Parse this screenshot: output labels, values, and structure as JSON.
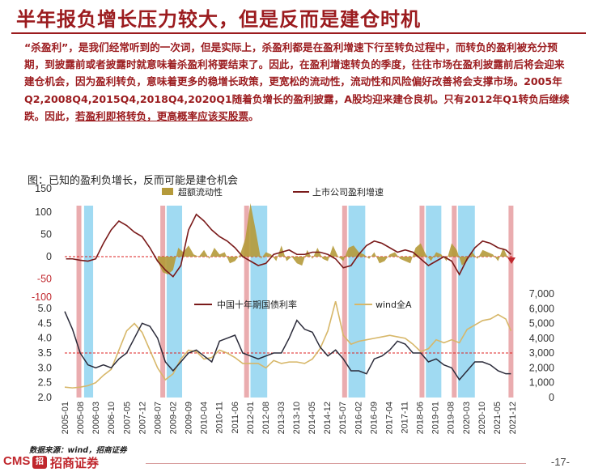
{
  "title": "半年报负增长压力较大，但是反而是建仓时机",
  "body": {
    "p1": "“杀盈利”，是我们经常听到的一次词，但是实际上，杀盈利都是在盈利增速下行至转负过程中，而转负的盈利被充分预期，到披露前或者披露时就意味着杀盈利将要结束了。因此，在盈利增速转负的季度，往往市场在盈利披露前后将会迎来建仓机会，因为盈利转负，意味着更多的稳增长政策，更宽松的流动性，流动性和风险偏好改善将会支撑市场。2005年Q2,2008Q4,2015Q4,2018Q4,2020Q1随着负增长的盈利披露，A股均迎来建仓良机。只有2012年Q1转负后继续跌。因此，",
    "p1_ul": "若盈利即将转负，更高概率应该买股票",
    "p1_end": "。"
  },
  "chart_title": "图：已知的盈利负增长，反而可能是建仓机会",
  "footer": {
    "source": "数据来源：wind，招商证券",
    "logo_text": "CMS",
    "logo_mark": "招",
    "logo_name": "招商证券",
    "page": "-17-"
  },
  "colors": {
    "brand_red": "#9b1b1e",
    "liquidity": "#b59a3a",
    "earnings": "#7a1a1a",
    "bond": "#2b2b3a",
    "wind": "#d7b769",
    "pink_band": "#e8a3a6",
    "blue_band": "#8fd3f0"
  },
  "chart_data": [
    {
      "type": "area+line",
      "legend": [
        "超额流动性",
        "上市公司盈利增速"
      ],
      "yticks": [
        "150",
        "100",
        "50",
        "0",
        "-50",
        "-100"
      ],
      "ylim": [
        -100,
        150
      ],
      "ref_line": 0,
      "series": [
        {
          "name": "超额流动性",
          "type": "area",
          "x": [
            2008.6,
            2008.8,
            2009.0,
            2009.2,
            2009.4,
            2009.6,
            2009.8,
            2010.0,
            2010.2,
            2010.4,
            2010.6,
            2010.8,
            2011.0,
            2011.2,
            2011.4,
            2011.6,
            2011.8,
            2012.0,
            2012.2,
            2012.4,
            2012.6,
            2012.8,
            2013.0,
            2013.2,
            2013.4,
            2013.6,
            2013.8,
            2014.0,
            2014.2,
            2014.4,
            2014.6,
            2014.8,
            2015.0,
            2015.2,
            2015.4,
            2015.6,
            2015.8,
            2016.0,
            2016.2,
            2016.4,
            2016.6,
            2016.8,
            2017.0,
            2017.2,
            2017.4,
            2017.6,
            2017.8,
            2018.0,
            2018.2,
            2018.4,
            2018.6,
            2018.8,
            2019.0,
            2019.2,
            2019.4,
            2019.6,
            2019.8,
            2020.0,
            2020.2,
            2020.4,
            2020.6,
            2020.8,
            2021.0,
            2021.2,
            2021.4,
            2021.6,
            2021.8,
            2022.0,
            2022.2
          ],
          "values": [
            -10,
            -35,
            -40,
            -30,
            20,
            10,
            25,
            5,
            0,
            15,
            -5,
            20,
            5,
            10,
            -15,
            -10,
            5,
            40,
            120,
            60,
            -5,
            10,
            5,
            -10,
            25,
            -10,
            0,
            -15,
            -20,
            15,
            -5,
            20,
            -5,
            -10,
            25,
            0,
            -10,
            20,
            25,
            10,
            5,
            -5,
            10,
            -15,
            -10,
            5,
            10,
            -5,
            -10,
            -15,
            20,
            30,
            5,
            -10,
            10,
            5,
            -10,
            30,
            15,
            -20,
            -10,
            10,
            -5,
            15,
            10,
            5,
            -10,
            20,
            -5
          ]
        },
        {
          "name": "上市公司盈利增速",
          "type": "line",
          "x": [
            2005.05,
            2005.3,
            2005.6,
            2005.9,
            2006.2,
            2006.5,
            2006.8,
            2007.1,
            2007.4,
            2007.7,
            2008.0,
            2008.3,
            2008.6,
            2008.9,
            2009.2,
            2009.5,
            2009.8,
            2010.1,
            2010.4,
            2010.7,
            2011.0,
            2011.3,
            2011.6,
            2011.9,
            2012.2,
            2012.5,
            2012.8,
            2013.1,
            2013.4,
            2013.7,
            2014.0,
            2014.3,
            2014.6,
            2014.9,
            2015.2,
            2015.5,
            2015.8,
            2016.1,
            2016.4,
            2016.7,
            2017.0,
            2017.3,
            2017.6,
            2017.9,
            2018.2,
            2018.5,
            2018.8,
            2019.1,
            2019.4,
            2019.7,
            2020.0,
            2020.3,
            2020.6,
            2020.9,
            2021.2,
            2021.5,
            2021.8,
            2022.1,
            2022.3
          ],
          "values": [
            -5,
            -5,
            -8,
            -10,
            -5,
            30,
            60,
            80,
            70,
            55,
            45,
            20,
            -10,
            -30,
            -45,
            -20,
            60,
            95,
            80,
            60,
            45,
            35,
            20,
            0,
            -10,
            -20,
            -15,
            5,
            10,
            15,
            5,
            5,
            10,
            10,
            5,
            -5,
            -25,
            -20,
            5,
            25,
            35,
            30,
            20,
            10,
            15,
            10,
            -5,
            -20,
            -10,
            0,
            -10,
            -40,
            -5,
            20,
            35,
            30,
            20,
            15,
            5
          ]
        }
      ]
    },
    {
      "type": "line",
      "legend": [
        "中国十年期国债利率",
        "wind全A"
      ],
      "x_ticks": [
        "2005-01",
        "2005-08",
        "2006-03",
        "2006-10",
        "2007-05",
        "2007-12",
        "2008-07",
        "2009-02",
        "2009-09",
        "2010-04",
        "2010-11",
        "2011-06",
        "2012-01",
        "2012-08",
        "2013-03",
        "2013-10",
        "2014-05",
        "2014-12",
        "2015-07",
        "2016-02",
        "2016-09",
        "2017-04",
        "2017-11",
        "2018-06",
        "2019-01",
        "2019-08",
        "2020-03",
        "2020-10",
        "2021-05",
        "2021-12"
      ],
      "y_left_ticks": [
        "5.0",
        "4.5",
        "4.0",
        "3.5",
        "3.0",
        "2.5",
        "2.0"
      ],
      "y_left_lim": [
        2.0,
        5.0
      ],
      "y_right_ticks": [
        "7,000",
        "6,000",
        "5,000",
        "4,000",
        "3,000",
        "2,000",
        "1,000",
        "0"
      ],
      "y_right_lim": [
        0,
        7000
      ],
      "ref_line_left": 3.5,
      "series": [
        {
          "name": "中国十年期国债利率",
          "axis": "left",
          "x": [
            2005.0,
            2005.3,
            2005.6,
            2005.9,
            2006.2,
            2006.5,
            2006.8,
            2007.1,
            2007.4,
            2007.7,
            2008.0,
            2008.3,
            2008.6,
            2008.9,
            2009.2,
            2009.5,
            2009.8,
            2010.1,
            2010.4,
            2010.7,
            2011.0,
            2011.3,
            2011.6,
            2011.9,
            2012.2,
            2012.5,
            2012.8,
            2013.1,
            2013.4,
            2013.7,
            2014.0,
            2014.3,
            2014.6,
            2014.9,
            2015.2,
            2015.5,
            2015.8,
            2016.1,
            2016.4,
            2016.7,
            2017.0,
            2017.3,
            2017.6,
            2017.9,
            2018.2,
            2018.5,
            2018.8,
            2019.1,
            2019.4,
            2019.7,
            2020.0,
            2020.3,
            2020.6,
            2020.9,
            2021.2,
            2021.5,
            2021.8,
            2022.1,
            2022.3
          ],
          "values": [
            4.9,
            4.3,
            3.5,
            3.1,
            3.0,
            3.1,
            3.0,
            3.3,
            3.5,
            4.0,
            4.5,
            4.4,
            4.0,
            3.2,
            2.9,
            3.2,
            3.5,
            3.6,
            3.4,
            3.2,
            3.9,
            4.0,
            4.1,
            3.5,
            3.4,
            3.3,
            3.4,
            3.5,
            3.5,
            4.0,
            4.6,
            4.3,
            4.2,
            3.7,
            3.4,
            3.6,
            3.3,
            2.9,
            2.9,
            2.8,
            3.3,
            3.4,
            3.6,
            3.9,
            3.8,
            3.5,
            3.5,
            3.2,
            3.3,
            3.1,
            3.0,
            2.6,
            2.9,
            3.2,
            3.2,
            3.1,
            2.9,
            2.8,
            2.8
          ]
        },
        {
          "name": "wind全A",
          "axis": "right",
          "x": [
            2005.0,
            2005.3,
            2005.6,
            2005.9,
            2006.2,
            2006.5,
            2006.8,
            2007.1,
            2007.4,
            2007.7,
            2008.0,
            2008.3,
            2008.6,
            2008.9,
            2009.2,
            2009.5,
            2009.8,
            2010.1,
            2010.4,
            2010.7,
            2011.0,
            2011.3,
            2011.6,
            2011.9,
            2012.2,
            2012.5,
            2012.8,
            2013.1,
            2013.4,
            2013.7,
            2014.0,
            2014.3,
            2014.6,
            2014.9,
            2015.2,
            2015.5,
            2015.8,
            2016.1,
            2016.4,
            2016.7,
            2017.0,
            2017.3,
            2017.6,
            2017.9,
            2018.2,
            2018.5,
            2018.8,
            2019.1,
            2019.4,
            2019.7,
            2020.0,
            2020.3,
            2020.6,
            2020.9,
            2021.2,
            2021.5,
            2021.8,
            2022.1,
            2022.3
          ],
          "values": [
            700,
            650,
            700,
            800,
            1000,
            1500,
            1900,
            3200,
            4500,
            5000,
            4400,
            3200,
            2000,
            1200,
            1600,
            2600,
            3200,
            3100,
            2600,
            2700,
            3200,
            3000,
            2700,
            2300,
            2300,
            2300,
            2000,
            2500,
            2300,
            2400,
            2400,
            2300,
            2600,
            3300,
            4500,
            6500,
            4200,
            3600,
            3800,
            3900,
            4000,
            4100,
            4200,
            4100,
            4000,
            3600,
            3100,
            3300,
            3900,
            3700,
            3900,
            3700,
            4600,
            4900,
            5200,
            5300,
            5600,
            5300,
            4500
          ]
        }
      ]
    }
  ],
  "bands": {
    "pink": [
      2005.55,
      2008.8,
      2012.05,
      2015.85,
      2018.85,
      2020.1,
      2022.3
    ],
    "blue": [
      [
        2005.75,
        2006.1
      ],
      [
        2008.95,
        2009.55
      ],
      [
        2012.2,
        2012.85
      ],
      [
        2016.0,
        2016.65
      ],
      [
        2019.0,
        2019.6
      ],
      [
        2020.25,
        2020.9
      ]
    ]
  }
}
